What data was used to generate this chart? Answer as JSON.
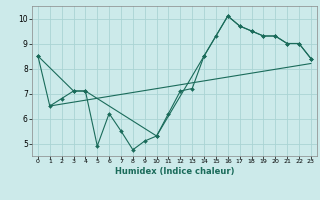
{
  "xlabel": "Humidex (Indice chaleur)",
  "bg_color": "#cceaea",
  "grid_color": "#aad4d4",
  "line_color": "#1a6b5a",
  "xlim": [
    -0.5,
    23.5
  ],
  "ylim": [
    4.5,
    10.5
  ],
  "xticks": [
    0,
    1,
    2,
    3,
    4,
    5,
    6,
    7,
    8,
    9,
    10,
    11,
    12,
    13,
    14,
    15,
    16,
    17,
    18,
    19,
    20,
    21,
    22,
    23
  ],
  "yticks": [
    5,
    6,
    7,
    8,
    9,
    10
  ],
  "series1_x": [
    0,
    1,
    2,
    3,
    4,
    5,
    6,
    7,
    8,
    9,
    10,
    11,
    12,
    13,
    14,
    15,
    16,
    17,
    18,
    19,
    20,
    21,
    22,
    23
  ],
  "series1_y": [
    8.5,
    6.5,
    6.8,
    7.1,
    7.1,
    4.9,
    6.2,
    5.5,
    4.75,
    5.1,
    5.3,
    6.2,
    7.1,
    7.2,
    8.5,
    9.3,
    10.1,
    9.7,
    9.5,
    9.3,
    9.3,
    9.0,
    9.0,
    8.4
  ],
  "series2_x": [
    0,
    3,
    4,
    10,
    14,
    16,
    17,
    18,
    19,
    20,
    21,
    22,
    23
  ],
  "series2_y": [
    8.5,
    7.1,
    7.1,
    5.3,
    8.5,
    10.1,
    9.7,
    9.5,
    9.3,
    9.3,
    9.0,
    9.0,
    8.4
  ],
  "series3_x": [
    1,
    23
  ],
  "series3_y": [
    6.5,
    8.2
  ]
}
